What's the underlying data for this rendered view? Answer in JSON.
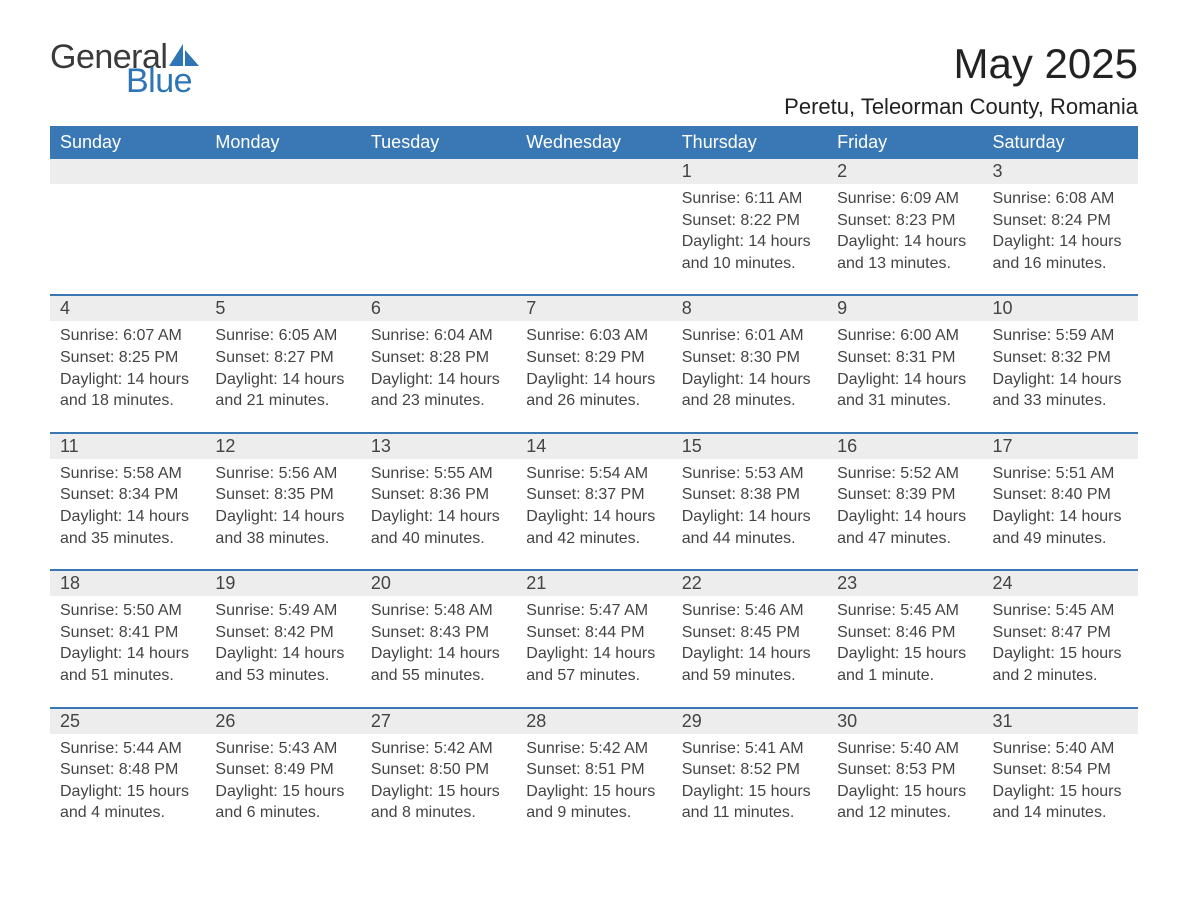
{
  "logo": {
    "text1": "General",
    "text2": "Blue",
    "icon_color": "#2e75b6"
  },
  "title": "May 2025",
  "location": "Peretu, Teleorman County, Romania",
  "colors": {
    "header_bg": "#3a78b5",
    "header_text": "#ffffff",
    "daynum_bg": "#ededed",
    "row_border": "#3a78b5",
    "body_text": "#444444"
  },
  "day_headers": [
    "Sunday",
    "Monday",
    "Tuesday",
    "Wednesday",
    "Thursday",
    "Friday",
    "Saturday"
  ],
  "weeks": [
    [
      {
        "n": "",
        "sunrise": "",
        "sunset": "",
        "daylight": ""
      },
      {
        "n": "",
        "sunrise": "",
        "sunset": "",
        "daylight": ""
      },
      {
        "n": "",
        "sunrise": "",
        "sunset": "",
        "daylight": ""
      },
      {
        "n": "",
        "sunrise": "",
        "sunset": "",
        "daylight": ""
      },
      {
        "n": "1",
        "sunrise": "Sunrise: 6:11 AM",
        "sunset": "Sunset: 8:22 PM",
        "daylight": "Daylight: 14 hours and 10 minutes."
      },
      {
        "n": "2",
        "sunrise": "Sunrise: 6:09 AM",
        "sunset": "Sunset: 8:23 PM",
        "daylight": "Daylight: 14 hours and 13 minutes."
      },
      {
        "n": "3",
        "sunrise": "Sunrise: 6:08 AM",
        "sunset": "Sunset: 8:24 PM",
        "daylight": "Daylight: 14 hours and 16 minutes."
      }
    ],
    [
      {
        "n": "4",
        "sunrise": "Sunrise: 6:07 AM",
        "sunset": "Sunset: 8:25 PM",
        "daylight": "Daylight: 14 hours and 18 minutes."
      },
      {
        "n": "5",
        "sunrise": "Sunrise: 6:05 AM",
        "sunset": "Sunset: 8:27 PM",
        "daylight": "Daylight: 14 hours and 21 minutes."
      },
      {
        "n": "6",
        "sunrise": "Sunrise: 6:04 AM",
        "sunset": "Sunset: 8:28 PM",
        "daylight": "Daylight: 14 hours and 23 minutes."
      },
      {
        "n": "7",
        "sunrise": "Sunrise: 6:03 AM",
        "sunset": "Sunset: 8:29 PM",
        "daylight": "Daylight: 14 hours and 26 minutes."
      },
      {
        "n": "8",
        "sunrise": "Sunrise: 6:01 AM",
        "sunset": "Sunset: 8:30 PM",
        "daylight": "Daylight: 14 hours and 28 minutes."
      },
      {
        "n": "9",
        "sunrise": "Sunrise: 6:00 AM",
        "sunset": "Sunset: 8:31 PM",
        "daylight": "Daylight: 14 hours and 31 minutes."
      },
      {
        "n": "10",
        "sunrise": "Sunrise: 5:59 AM",
        "sunset": "Sunset: 8:32 PM",
        "daylight": "Daylight: 14 hours and 33 minutes."
      }
    ],
    [
      {
        "n": "11",
        "sunrise": "Sunrise: 5:58 AM",
        "sunset": "Sunset: 8:34 PM",
        "daylight": "Daylight: 14 hours and 35 minutes."
      },
      {
        "n": "12",
        "sunrise": "Sunrise: 5:56 AM",
        "sunset": "Sunset: 8:35 PM",
        "daylight": "Daylight: 14 hours and 38 minutes."
      },
      {
        "n": "13",
        "sunrise": "Sunrise: 5:55 AM",
        "sunset": "Sunset: 8:36 PM",
        "daylight": "Daylight: 14 hours and 40 minutes."
      },
      {
        "n": "14",
        "sunrise": "Sunrise: 5:54 AM",
        "sunset": "Sunset: 8:37 PM",
        "daylight": "Daylight: 14 hours and 42 minutes."
      },
      {
        "n": "15",
        "sunrise": "Sunrise: 5:53 AM",
        "sunset": "Sunset: 8:38 PM",
        "daylight": "Daylight: 14 hours and 44 minutes."
      },
      {
        "n": "16",
        "sunrise": "Sunrise: 5:52 AM",
        "sunset": "Sunset: 8:39 PM",
        "daylight": "Daylight: 14 hours and 47 minutes."
      },
      {
        "n": "17",
        "sunrise": "Sunrise: 5:51 AM",
        "sunset": "Sunset: 8:40 PM",
        "daylight": "Daylight: 14 hours and 49 minutes."
      }
    ],
    [
      {
        "n": "18",
        "sunrise": "Sunrise: 5:50 AM",
        "sunset": "Sunset: 8:41 PM",
        "daylight": "Daylight: 14 hours and 51 minutes."
      },
      {
        "n": "19",
        "sunrise": "Sunrise: 5:49 AM",
        "sunset": "Sunset: 8:42 PM",
        "daylight": "Daylight: 14 hours and 53 minutes."
      },
      {
        "n": "20",
        "sunrise": "Sunrise: 5:48 AM",
        "sunset": "Sunset: 8:43 PM",
        "daylight": "Daylight: 14 hours and 55 minutes."
      },
      {
        "n": "21",
        "sunrise": "Sunrise: 5:47 AM",
        "sunset": "Sunset: 8:44 PM",
        "daylight": "Daylight: 14 hours and 57 minutes."
      },
      {
        "n": "22",
        "sunrise": "Sunrise: 5:46 AM",
        "sunset": "Sunset: 8:45 PM",
        "daylight": "Daylight: 14 hours and 59 minutes."
      },
      {
        "n": "23",
        "sunrise": "Sunrise: 5:45 AM",
        "sunset": "Sunset: 8:46 PM",
        "daylight": "Daylight: 15 hours and 1 minute."
      },
      {
        "n": "24",
        "sunrise": "Sunrise: 5:45 AM",
        "sunset": "Sunset: 8:47 PM",
        "daylight": "Daylight: 15 hours and 2 minutes."
      }
    ],
    [
      {
        "n": "25",
        "sunrise": "Sunrise: 5:44 AM",
        "sunset": "Sunset: 8:48 PM",
        "daylight": "Daylight: 15 hours and 4 minutes."
      },
      {
        "n": "26",
        "sunrise": "Sunrise: 5:43 AM",
        "sunset": "Sunset: 8:49 PM",
        "daylight": "Daylight: 15 hours and 6 minutes."
      },
      {
        "n": "27",
        "sunrise": "Sunrise: 5:42 AM",
        "sunset": "Sunset: 8:50 PM",
        "daylight": "Daylight: 15 hours and 8 minutes."
      },
      {
        "n": "28",
        "sunrise": "Sunrise: 5:42 AM",
        "sunset": "Sunset: 8:51 PM",
        "daylight": "Daylight: 15 hours and 9 minutes."
      },
      {
        "n": "29",
        "sunrise": "Sunrise: 5:41 AM",
        "sunset": "Sunset: 8:52 PM",
        "daylight": "Daylight: 15 hours and 11 minutes."
      },
      {
        "n": "30",
        "sunrise": "Sunrise: 5:40 AM",
        "sunset": "Sunset: 8:53 PM",
        "daylight": "Daylight: 15 hours and 12 minutes."
      },
      {
        "n": "31",
        "sunrise": "Sunrise: 5:40 AM",
        "sunset": "Sunset: 8:54 PM",
        "daylight": "Daylight: 15 hours and 14 minutes."
      }
    ]
  ]
}
